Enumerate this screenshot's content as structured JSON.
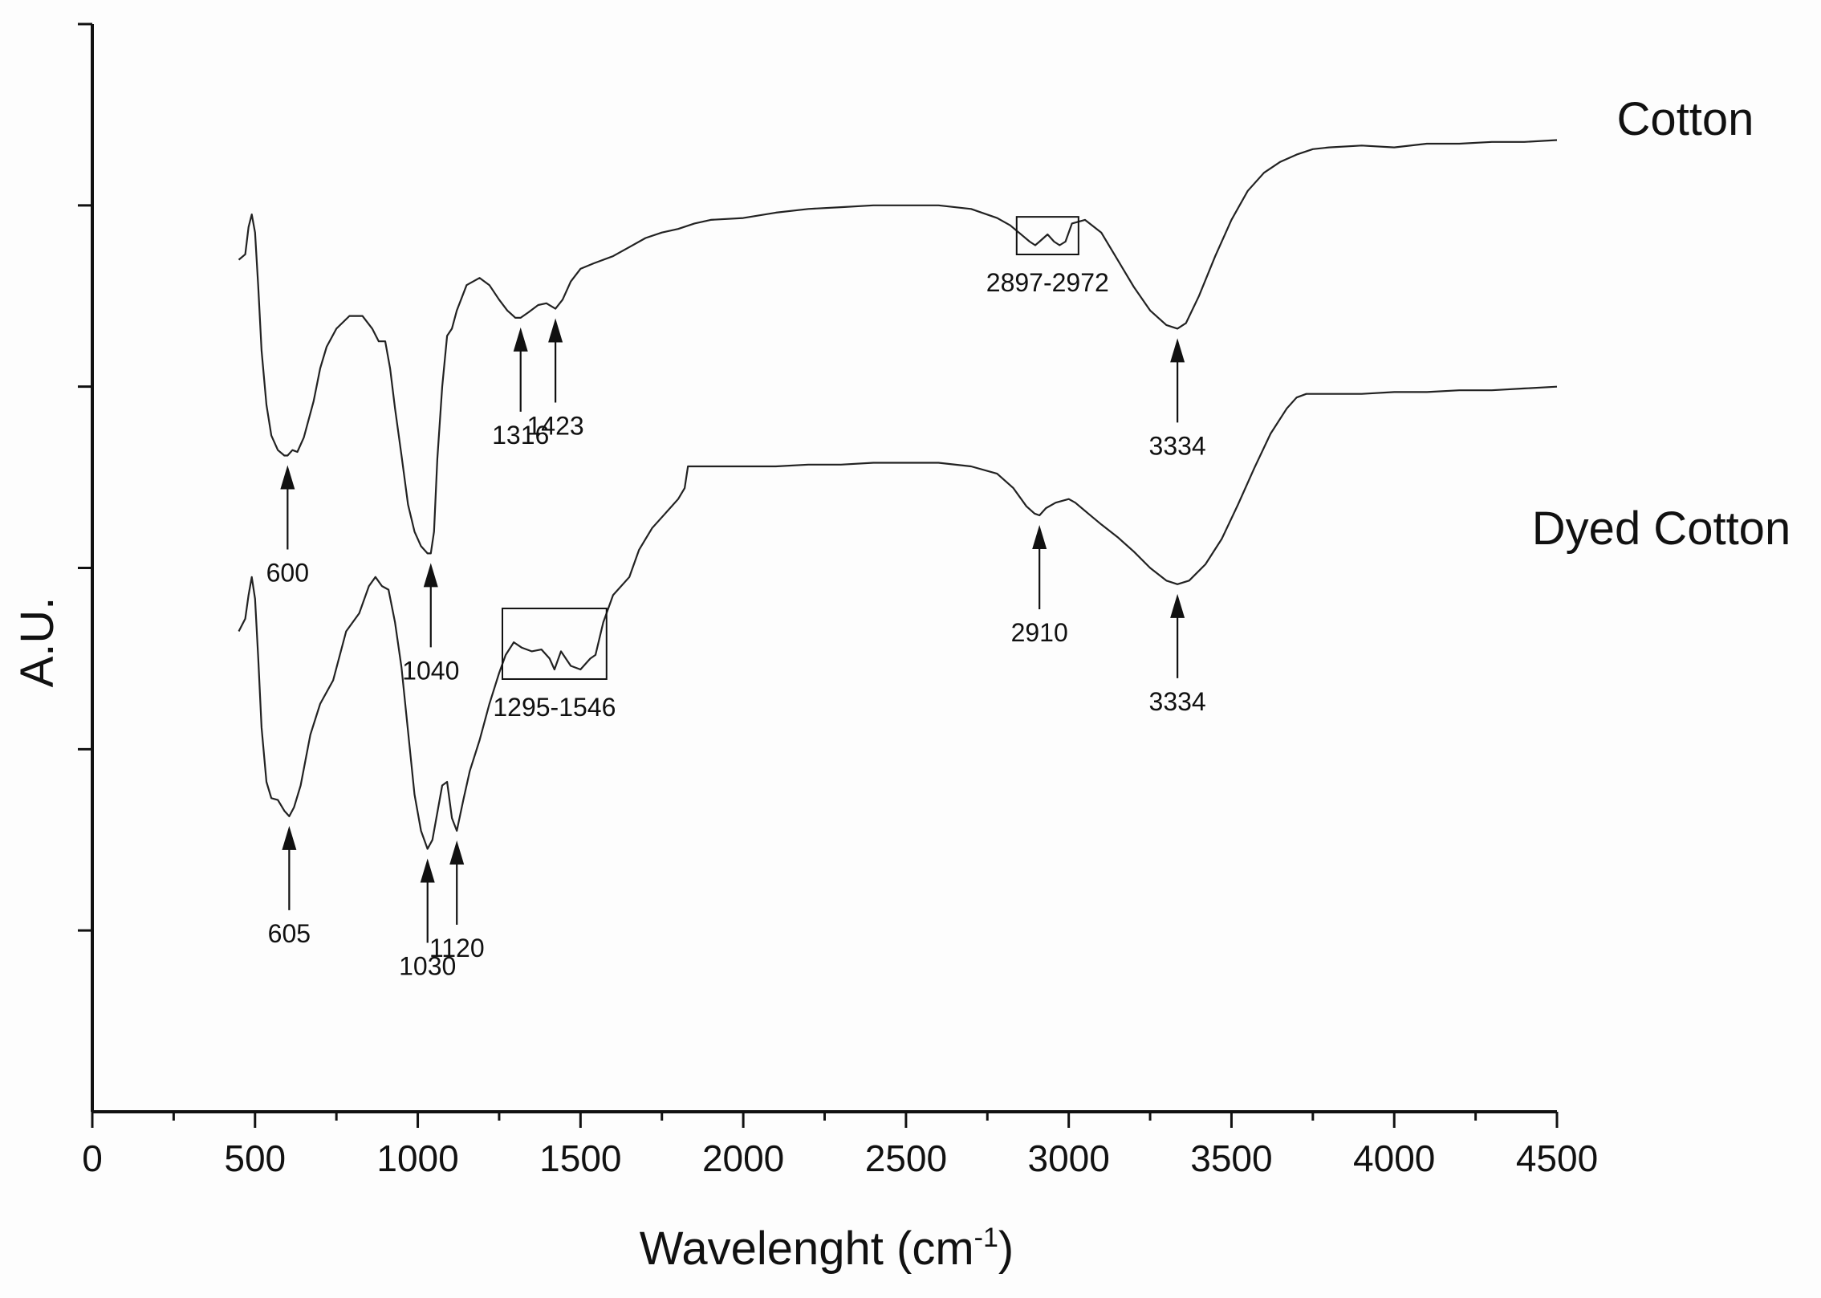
{
  "chart_data": {
    "type": "line",
    "title": "",
    "xlabel": "Wavelenght (cm",
    "xlabel_sup": "-1",
    "xlabel_close": ")",
    "ylabel": "A.U.",
    "xlim": [
      0,
      4500
    ],
    "x_ticks": [
      0,
      500,
      1000,
      1500,
      2000,
      2500,
      3000,
      3500,
      4000,
      4500
    ],
    "x_tick_labels": [
      "0",
      "500",
      "1000",
      "1500",
      "2000",
      "2500",
      "3000",
      "3500",
      "4000",
      "4500"
    ],
    "ylim": [
      0,
      6
    ],
    "y_ticks": [
      1,
      2,
      3,
      4,
      5,
      6
    ],
    "y_tick_labels": [],
    "grid": false,
    "legend": "none",
    "line_color": "#222222",
    "series": [
      {
        "name": "Cotton",
        "x": [
          450,
          470,
          480,
          490,
          500,
          510,
          520,
          535,
          550,
          570,
          590,
          600,
          615,
          630,
          650,
          680,
          700,
          720,
          750,
          790,
          830,
          860,
          880,
          900,
          915,
          930,
          950,
          970,
          990,
          1010,
          1030,
          1040,
          1050,
          1060,
          1075,
          1090,
          1105,
          1120,
          1150,
          1190,
          1220,
          1250,
          1275,
          1300,
          1316,
          1340,
          1370,
          1395,
          1423,
          1445,
          1470,
          1500,
          1540,
          1600,
          1650,
          1700,
          1750,
          1800,
          1850,
          1900,
          2000,
          2100,
          2200,
          2300,
          2400,
          2500,
          2600,
          2700,
          2780,
          2820,
          2860,
          2880,
          2897,
          2910,
          2935,
          2955,
          2972,
          2990,
          3010,
          3050,
          3100,
          3150,
          3200,
          3250,
          3300,
          3334,
          3360,
          3400,
          3450,
          3500,
          3550,
          3600,
          3650,
          3700,
          3750,
          3800,
          3900,
          4000,
          4100,
          4200,
          4300,
          4400,
          4500
        ],
        "y": [
          4.7,
          4.73,
          4.88,
          4.95,
          4.85,
          4.55,
          4.2,
          3.9,
          3.73,
          3.65,
          3.62,
          3.62,
          3.65,
          3.64,
          3.72,
          3.92,
          4.1,
          4.22,
          4.32,
          4.39,
          4.39,
          4.32,
          4.25,
          4.25,
          4.1,
          3.88,
          3.62,
          3.35,
          3.2,
          3.12,
          3.08,
          3.08,
          3.2,
          3.6,
          4.0,
          4.28,
          4.32,
          4.42,
          4.56,
          4.6,
          4.56,
          4.48,
          4.42,
          4.38,
          4.38,
          4.41,
          4.45,
          4.46,
          4.43,
          4.48,
          4.58,
          4.65,
          4.68,
          4.72,
          4.77,
          4.82,
          4.85,
          4.87,
          4.9,
          4.92,
          4.93,
          4.96,
          4.98,
          4.99,
          5.0,
          5.0,
          5.0,
          4.98,
          4.93,
          4.89,
          4.83,
          4.8,
          4.78,
          4.8,
          4.84,
          4.8,
          4.78,
          4.8,
          4.9,
          4.92,
          4.85,
          4.7,
          4.55,
          4.42,
          4.34,
          4.32,
          4.35,
          4.5,
          4.72,
          4.92,
          5.08,
          5.18,
          5.24,
          5.28,
          5.31,
          5.32,
          5.33,
          5.32,
          5.34,
          5.34,
          5.35,
          5.35,
          5.36
        ]
      },
      {
        "name": "Dyed Cotton",
        "x": [
          450,
          470,
          480,
          490,
          500,
          510,
          520,
          535,
          550,
          570,
          590,
          605,
          620,
          640,
          670,
          700,
          740,
          780,
          820,
          850,
          870,
          890,
          910,
          930,
          950,
          970,
          990,
          1010,
          1030,
          1045,
          1060,
          1075,
          1090,
          1105,
          1120,
          1140,
          1160,
          1190,
          1220,
          1250,
          1270,
          1295,
          1320,
          1350,
          1380,
          1405,
          1420,
          1440,
          1470,
          1500,
          1530,
          1546,
          1570,
          1600,
          1650,
          1680,
          1700,
          1720,
          1760,
          1800,
          1820,
          1830,
          1900,
          2000,
          2100,
          2200,
          2300,
          2400,
          2500,
          2600,
          2700,
          2780,
          2830,
          2870,
          2895,
          2910,
          2930,
          2960,
          3000,
          3020,
          3060,
          3100,
          3150,
          3200,
          3250,
          3300,
          3334,
          3370,
          3420,
          3470,
          3520,
          3570,
          3620,
          3670,
          3700,
          3730,
          3800,
          3900,
          4000,
          4100,
          4200,
          4300,
          4400,
          4500
        ],
        "y": [
          2.65,
          2.72,
          2.85,
          2.95,
          2.83,
          2.5,
          2.12,
          1.82,
          1.73,
          1.72,
          1.66,
          1.63,
          1.68,
          1.8,
          2.08,
          2.25,
          2.38,
          2.65,
          2.75,
          2.9,
          2.95,
          2.9,
          2.88,
          2.7,
          2.45,
          2.1,
          1.75,
          1.55,
          1.45,
          1.5,
          1.65,
          1.8,
          1.82,
          1.62,
          1.55,
          1.72,
          1.88,
          2.05,
          2.25,
          2.42,
          2.52,
          2.59,
          2.56,
          2.54,
          2.55,
          2.5,
          2.44,
          2.54,
          2.46,
          2.44,
          2.5,
          2.52,
          2.7,
          2.85,
          2.95,
          3.1,
          3.16,
          3.22,
          3.3,
          3.38,
          3.44,
          3.56,
          3.56,
          3.56,
          3.56,
          3.57,
          3.57,
          3.58,
          3.58,
          3.58,
          3.56,
          3.52,
          3.44,
          3.34,
          3.3,
          3.29,
          3.33,
          3.36,
          3.38,
          3.36,
          3.3,
          3.24,
          3.17,
          3.09,
          3.0,
          2.93,
          2.91,
          2.93,
          3.02,
          3.16,
          3.35,
          3.55,
          3.74,
          3.88,
          3.94,
          3.96,
          3.96,
          3.96,
          3.97,
          3.97,
          3.98,
          3.98,
          3.99,
          4.0
        ]
      }
    ],
    "annotations": [
      {
        "label": "600",
        "x": 600,
        "series": 0,
        "kind": "arrow"
      },
      {
        "label": "1040",
        "x": 1040,
        "series": 0,
        "kind": "arrow"
      },
      {
        "label": "1316",
        "x": 1316,
        "series": 0,
        "kind": "arrow"
      },
      {
        "label": "1423",
        "x": 1423,
        "series": 0,
        "kind": "arrow"
      },
      {
        "label": "2897-2972",
        "x_from": 2840,
        "x_to": 3030,
        "series": 0,
        "kind": "box"
      },
      {
        "label": "3334",
        "x": 3334,
        "series": 0,
        "kind": "arrow"
      },
      {
        "label": "605",
        "x": 605,
        "series": 1,
        "kind": "arrow"
      },
      {
        "label": "1030",
        "x": 1030,
        "series": 1,
        "kind": "arrow"
      },
      {
        "label": "1120",
        "x": 1120,
        "series": 1,
        "kind": "arrow"
      },
      {
        "label": "1295-1546",
        "x_from": 1260,
        "x_to": 1580,
        "series": 1,
        "kind": "box"
      },
      {
        "label": "2910",
        "x": 2910,
        "series": 1,
        "kind": "arrow"
      },
      {
        "label": "3334",
        "x": 3334,
        "series": 1,
        "kind": "arrow"
      }
    ]
  }
}
